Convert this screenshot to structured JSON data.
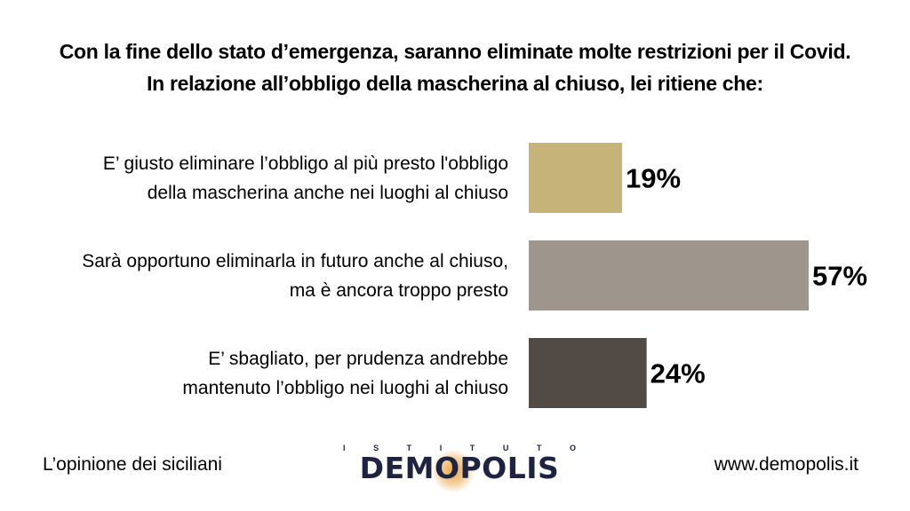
{
  "header": {
    "line1": "Con la fine dello stato d’emergenza, saranno eliminate molte restrizioni per il Covid.",
    "line2": "In relazione all’obbligo della mascherina al chiuso, lei ritiene che:"
  },
  "chart_data": {
    "type": "bar",
    "orientation": "horizontal",
    "categories": [
      [
        "E’ giusto eliminare l’obbligo al più presto l'obbligo",
        "della mascherina anche nei luoghi al chiuso"
      ],
      [
        "Sarà opportuno eliminarla in futuro anche al chiuso,",
        "ma è ancora troppo presto"
      ],
      [
        "E’ sbagliato, per prudenza andrebbe",
        "mantenuto l’obbligo nei luoghi al chiuso"
      ]
    ],
    "values": [
      19,
      57,
      24
    ],
    "value_labels": [
      "19%",
      "57%",
      "24%"
    ],
    "colors": [
      "#c6b377",
      "#9e958d",
      "#514a45"
    ],
    "xlim": [
      0,
      100
    ],
    "grid": false,
    "legend": "none"
  },
  "footer": {
    "left": "L’opinione dei siciliani",
    "right": "www.demopolis.it",
    "logo_top": "ISTITUTO",
    "logo_main": "DEMOPOLIS"
  }
}
